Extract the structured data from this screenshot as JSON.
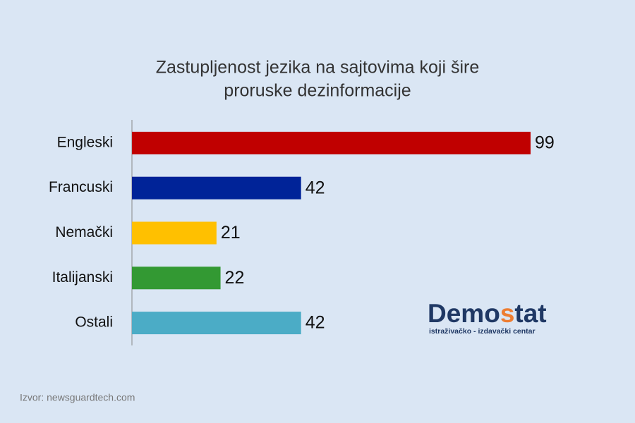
{
  "chart_data": {
    "type": "hbar",
    "title": [
      "Zastupljenost jezika na sajtovima koji šire",
      "proruske dezinformacije"
    ],
    "categories": [
      "Engleski",
      "Francuski",
      "Nemački",
      "Italijanski",
      "Ostali"
    ],
    "values": [
      99,
      42,
      21,
      22,
      42
    ],
    "colors": [
      "#c00000",
      "#002398",
      "#ffc000",
      "#339933",
      "#4bacc6"
    ],
    "source": "Izvor: newsguardtech.com",
    "logo": {
      "parts": [
        "Demo",
        "s",
        "tat"
      ],
      "subtitle": "istraživačko - izdavački centar"
    }
  }
}
